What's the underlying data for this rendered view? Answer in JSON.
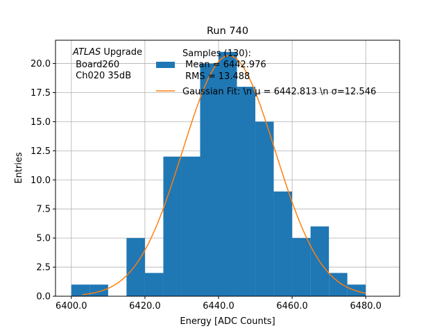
{
  "chart_data": {
    "type": "bar",
    "title": "Run 740",
    "xlabel": "Energy [ADC Counts]",
    "ylabel": "Entries",
    "xlim": [
      6395.7,
      6489.2
    ],
    "ylim": [
      0,
      22
    ],
    "grid": true,
    "xticks": [
      6400,
      6420,
      6440,
      6460,
      6480
    ],
    "xtick_labels": [
      "6400.0",
      "6420.0",
      "6440.0",
      "6460.0",
      "6480.0"
    ],
    "yticks": [
      0,
      2.5,
      5,
      7.5,
      10,
      12.5,
      15,
      17.5,
      20
    ],
    "ytick_labels": [
      "0.0",
      "2.5",
      "5.0",
      "7.5",
      "10.0",
      "12.5",
      "15.0",
      "17.5",
      "20.0"
    ],
    "bin_width": 5,
    "bin_edges_start": [
      6400,
      6405,
      6410,
      6415,
      6420,
      6425,
      6430,
      6435,
      6440,
      6445,
      6450,
      6455,
      6460,
      6465,
      6470,
      6475
    ],
    "values": [
      1,
      1,
      0,
      5,
      2,
      12,
      12,
      20,
      21,
      18,
      15,
      9,
      5,
      6,
      2,
      1
    ],
    "fit": {
      "mu": 6442.813,
      "sigma": 12.546,
      "amplitude": 20.67,
      "range": [
        6403,
        6480
      ]
    },
    "colors": {
      "histogram": "#1f77b4",
      "fit": "#ff7f0e"
    },
    "legend_placement": "top-center",
    "legend": [
      {
        "lines": [
          "Samples (130):",
          " Mean = 6442.976",
          " RMS = 13.488"
        ],
        "kind": "histogram"
      },
      {
        "lines": [
          "Gaussian Fit: \\n μ = 6442.813 \\n σ=12.546"
        ],
        "kind": "fit"
      }
    ],
    "annotation": {
      "italic": "ATLAS",
      "rest": " Upgrade",
      "lines": [
        " Board260",
        " Ch020 35dB"
      ]
    }
  }
}
